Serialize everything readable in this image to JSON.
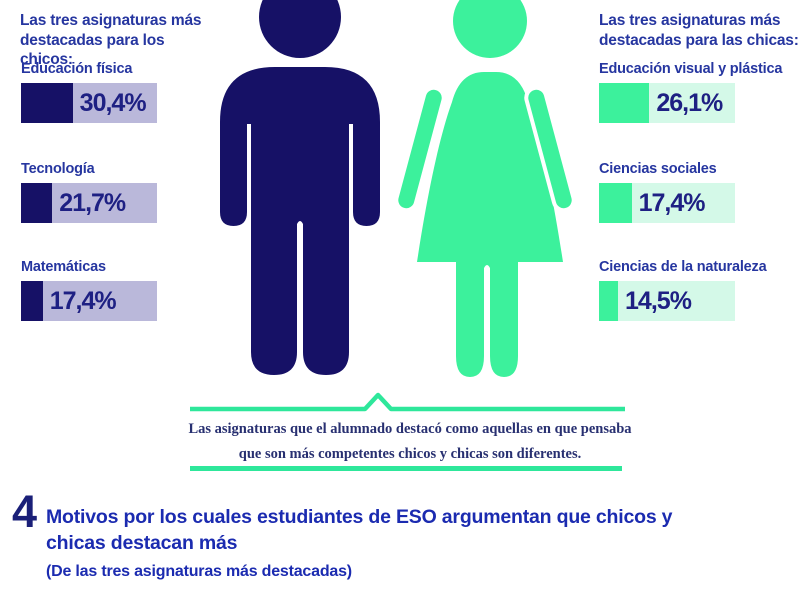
{
  "palette": {
    "navy_fill": "#161166",
    "navy_text": "#2636a0",
    "navy_pct": "#1e2083",
    "lavender_track": "#bab8da",
    "green_fill": "#3cf19c",
    "mint_track": "#d4f9e8",
    "divider_green": "#2ee79b",
    "heading_blue": "#1b2bb0"
  },
  "boys": {
    "title": "Las tres asignaturas más destacadas para los chicos:",
    "bars": [
      {
        "label": "Educación física",
        "value": "30,4%",
        "fill_pct": 38
      },
      {
        "label": "Tecnología",
        "value": "21,7%",
        "fill_pct": 23
      },
      {
        "label": "Matemáticas",
        "value": "17,4%",
        "fill_pct": 16
      }
    ]
  },
  "girls": {
    "title": "Las tres asignaturas más destacadas para las chicas:",
    "bars": [
      {
        "label": "Educación visual y plástica",
        "value": "26,1%",
        "fill_pct": 37
      },
      {
        "label": "Ciencias sociales",
        "value": "17,4%",
        "fill_pct": 24
      },
      {
        "label": "Ciencias de la naturaleza",
        "value": "14,5%",
        "fill_pct": 14
      }
    ]
  },
  "figures": {
    "male": "man-pictogram",
    "female": "woman-pictogram"
  },
  "divider_note": {
    "line1": "Las asignaturas que el alumnado destacó como aquellas en que pensaba",
    "line2": "que son más competentes chicos y chicas son diferentes."
  },
  "section4": {
    "number": "4",
    "title_line1": "Motivos por los cuales estudiantes de ESO argumentan que chicos y",
    "title_line2": "chicas destacan más",
    "subtitle": "(De las tres asignaturas más destacadas)"
  },
  "chart_data": [
    {
      "type": "bar",
      "title": "Las tres asignaturas más destacadas para los chicos:",
      "categories": [
        "Educación física",
        "Tecnología",
        "Matemáticas"
      ],
      "values": [
        30.4,
        21.7,
        17.4
      ],
      "unit": "%",
      "orientation": "horizontal",
      "bar_color": "#161166",
      "track_color": "#bab8da",
      "value_labels": [
        "30,4%",
        "21,7%",
        "17,4%"
      ]
    },
    {
      "type": "bar",
      "title": "Las tres asignaturas más destacadas para las chicas:",
      "categories": [
        "Educación visual y plástica",
        "Ciencias sociales",
        "Ciencias de la naturaleza"
      ],
      "values": [
        26.1,
        17.4,
        14.5
      ],
      "unit": "%",
      "orientation": "horizontal",
      "bar_color": "#3cf19c",
      "track_color": "#d4f9e8",
      "value_labels": [
        "26,1%",
        "17,4%",
        "14,5%"
      ]
    }
  ]
}
